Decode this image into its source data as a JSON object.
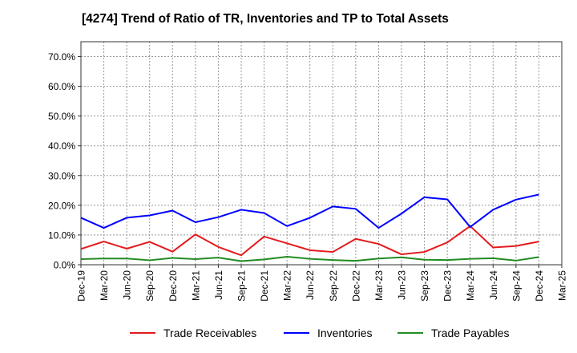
{
  "chart_data": {
    "type": "line",
    "title": "[4274]  Trend of Ratio of TR, Inventories and TP to Total Assets",
    "xlabel": "",
    "ylabel": "",
    "ylim": [
      0,
      75
    ],
    "y_ticks": [
      "0.0%",
      "10.0%",
      "20.0%",
      "30.0%",
      "40.0%",
      "50.0%",
      "60.0%",
      "70.0%"
    ],
    "y_tick_values": [
      0,
      10,
      20,
      30,
      40,
      50,
      60,
      70
    ],
    "categories": [
      "Dec-19",
      "Mar-20",
      "Jun-20",
      "Sep-20",
      "Dec-20",
      "Mar-21",
      "Jun-21",
      "Sep-21",
      "Dec-21",
      "Mar-22",
      "Jun-22",
      "Sep-22",
      "Dec-22",
      "Mar-23",
      "Jun-23",
      "Sep-23",
      "Dec-23",
      "Mar-24",
      "Jun-24",
      "Sep-24",
      "Dec-24",
      "Mar-25"
    ],
    "grid": true,
    "legend_position": "bottom",
    "series": [
      {
        "name": "Trade Receivables",
        "color": "#e41a1c",
        "values": [
          5.3,
          7.8,
          5.4,
          7.7,
          4.4,
          10.2,
          6.0,
          3.2,
          9.5,
          7.2,
          4.9,
          4.3,
          8.7,
          7.0,
          3.5,
          4.3,
          7.5,
          13.0,
          5.8,
          6.3,
          7.8,
          null
        ]
      },
      {
        "name": "Inventories",
        "color": "#0000ff",
        "values": [
          15.8,
          12.4,
          15.8,
          16.6,
          18.2,
          14.3,
          16.0,
          18.5,
          17.4,
          13.0,
          15.8,
          19.6,
          18.8,
          12.4,
          17.2,
          22.7,
          22.0,
          12.7,
          18.5,
          21.9,
          23.6,
          null
        ]
      },
      {
        "name": "Trade Payables",
        "color": "#228b22",
        "values": [
          1.9,
          2.1,
          2.1,
          1.5,
          2.3,
          1.9,
          2.4,
          1.2,
          1.8,
          2.7,
          2.0,
          1.6,
          1.3,
          2.1,
          2.5,
          1.7,
          1.6,
          2.0,
          2.2,
          1.4,
          2.6,
          null
        ]
      }
    ]
  }
}
